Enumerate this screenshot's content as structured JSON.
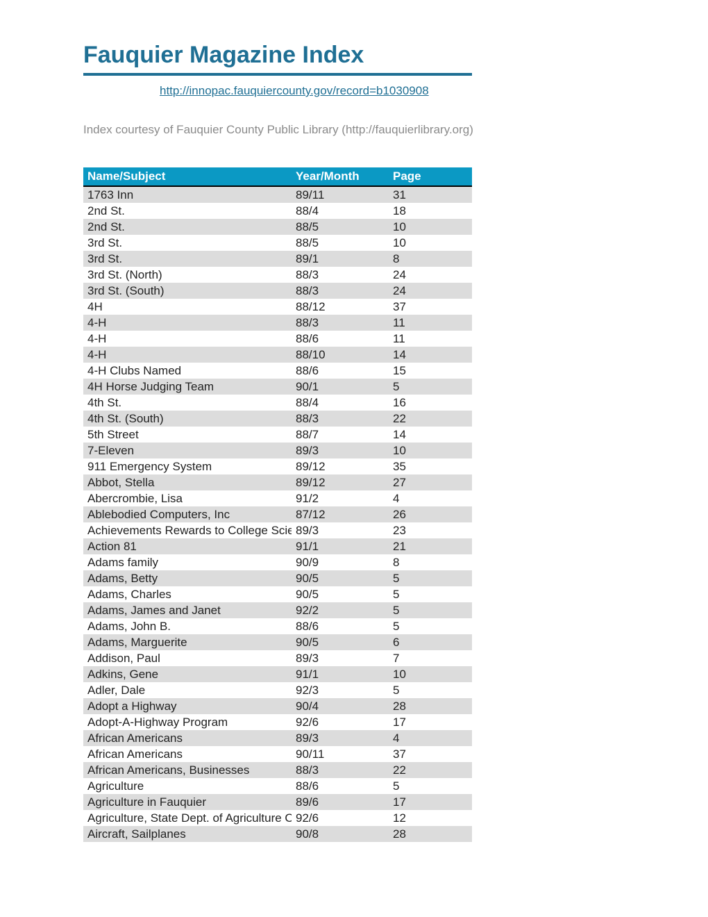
{
  "title": "Fauquier Magazine Index",
  "link_url": "http://innopac.fauquiercounty.gov/record=b1030908",
  "courtesy": "Index courtesy of Fauquier County Public Library (http://fauquierlibrary.org)",
  "colors": {
    "accent": "#1f6f94",
    "header_bg": "#0b99c4",
    "header_fg": "#ffffff",
    "row_alt_bg": "#dcdcdc",
    "courtesy_text": "#8a8a8a",
    "header_bottom_border": "#000000"
  },
  "columns": [
    "Name/Subject",
    "Year/Month",
    "Page"
  ],
  "rows": [
    [
      "1763 Inn",
      "89/11",
      "31"
    ],
    [
      "2nd St.",
      "88/4",
      "18"
    ],
    [
      "2nd St.",
      "88/5",
      "10"
    ],
    [
      "3rd St.",
      "88/5",
      "10"
    ],
    [
      "3rd St.",
      "89/1",
      "8"
    ],
    [
      "3rd St. (North)",
      "88/3",
      "24"
    ],
    [
      "3rd St. (South)",
      "88/3",
      "24"
    ],
    [
      "4H",
      "88/12",
      "37"
    ],
    [
      "4-H",
      "88/3",
      "11"
    ],
    [
      "4-H",
      "88/6",
      "11"
    ],
    [
      "4-H",
      "88/10",
      "14"
    ],
    [
      "4-H Clubs Named",
      "88/6",
      "15"
    ],
    [
      "4H Horse Judging Team",
      "90/1",
      "5"
    ],
    [
      "4th St.",
      "88/4",
      "16"
    ],
    [
      "4th St. (South)",
      "88/3",
      "22"
    ],
    [
      "5th Street",
      "88/7",
      "14"
    ],
    [
      "7-Eleven",
      "89/3",
      "10"
    ],
    [
      "911 Emergency System",
      "89/12",
      "35"
    ],
    [
      "Abbot, Stella",
      "89/12",
      "27"
    ],
    [
      "Abercrombie, Lisa",
      "91/2",
      "4"
    ],
    [
      "Ablebodied Computers, Inc",
      "87/12",
      "26"
    ],
    [
      "Achievements Rewards to College Scien",
      "89/3",
      "23"
    ],
    [
      "Action 81",
      "91/1",
      "21"
    ],
    [
      "Adams family",
      "90/9",
      "8"
    ],
    [
      "Adams, Betty",
      "90/5",
      "5"
    ],
    [
      "Adams, Charles",
      "90/5",
      "5"
    ],
    [
      "Adams, James and Janet",
      "92/2",
      "5"
    ],
    [
      "Adams, John B.",
      "88/6",
      "5"
    ],
    [
      "Adams, Marguerite",
      "90/5",
      "6"
    ],
    [
      "Addison, Paul",
      "89/3",
      "7"
    ],
    [
      "Adkins, Gene",
      "91/1",
      "10"
    ],
    [
      "Adler, Dale",
      "92/3",
      "5"
    ],
    [
      "Adopt a Highway",
      "90/4",
      "28"
    ],
    [
      "Adopt-A-Highway Program",
      "92/6",
      "17"
    ],
    [
      "African Americans",
      "89/3",
      "4"
    ],
    [
      "African Americans",
      "90/11",
      "37"
    ],
    [
      "African Americans, Businesses",
      "88/3",
      "22"
    ],
    [
      "Agriculture",
      "88/6",
      "5"
    ],
    [
      "Agriculture in Fauquier",
      "89/6",
      "17"
    ],
    [
      "Agriculture, State Dept. of Agriculture O",
      "92/6",
      "12"
    ],
    [
      "Aircraft, Sailplanes",
      "90/8",
      "28"
    ]
  ]
}
